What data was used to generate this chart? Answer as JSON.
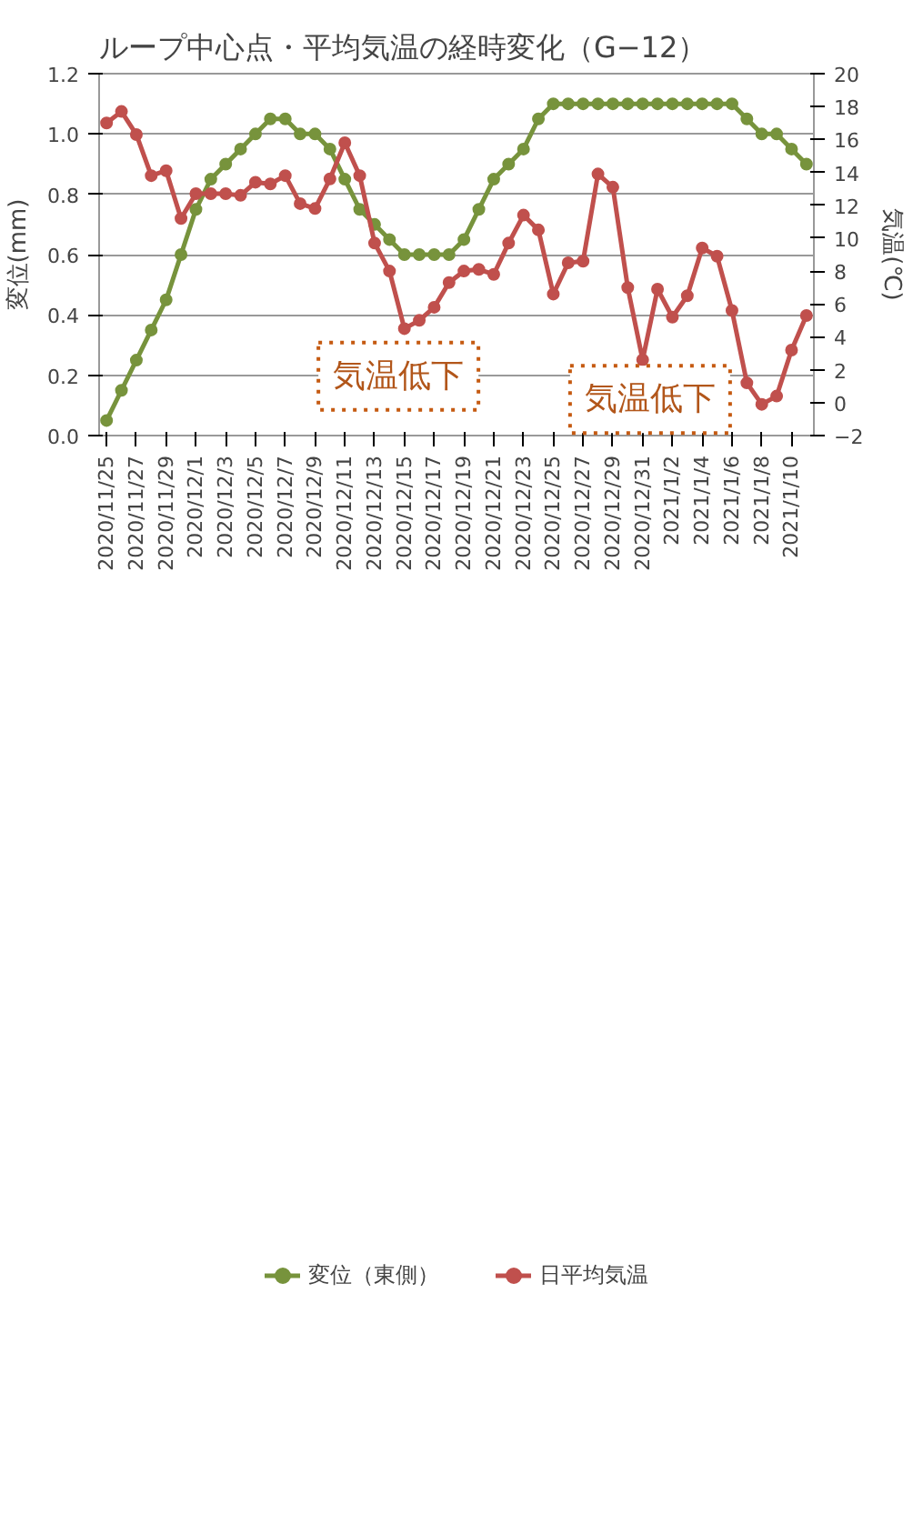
{
  "chart_data": {
    "type": "line",
    "title": "ループ中心点・平均気温の経時変化（G−12）",
    "ylabel": "変位(mm)",
    "y2label": "気温(℃)",
    "categories": [
      "2020/11/25",
      null,
      "2020/11/27",
      null,
      "2020/11/29",
      null,
      "2020/12/1",
      null,
      "2020/12/3",
      null,
      "2020/12/5",
      null,
      "2020/12/7",
      null,
      "2020/12/9",
      null,
      "2020/12/11",
      null,
      "2020/12/13",
      null,
      "2020/12/15",
      null,
      "2020/12/17",
      null,
      "2020/12/19",
      null,
      "2020/12/21",
      null,
      "2020/12/23",
      null,
      "2020/12/25",
      null,
      "2020/12/27",
      null,
      "2020/12/29",
      null,
      "2020/12/31",
      null,
      "2021/1/2",
      null,
      "2021/1/4",
      null,
      "2021/1/6",
      null,
      "2021/1/8",
      null,
      "2021/1/10",
      null
    ],
    "series": [
      {
        "name": "変位（東側）",
        "color": "#77933c",
        "values": [
          0.05,
          0.15,
          0.25,
          0.35,
          0.45,
          0.6,
          0.75,
          0.85,
          0.9,
          0.95,
          1.0,
          1.05,
          1.05,
          1.0,
          1.0,
          0.95,
          0.85,
          0.75,
          0.7,
          0.65,
          0.6,
          0.6,
          0.6,
          0.6,
          0.65,
          0.75,
          0.85,
          0.9,
          0.95,
          1.05,
          1.1,
          1.1,
          1.1,
          1.1,
          1.1,
          1.1,
          1.1,
          1.1,
          1.1,
          1.1,
          1.1,
          1.1,
          1.1,
          1.05,
          1.0,
          1.0,
          0.95,
          0.9
        ]
      },
      {
        "name": "日平均気温",
        "color": "#c0504d",
        "axis": "y2",
        "values": [
          17.0,
          17.7,
          16.3,
          13.8,
          14.1,
          11.2,
          12.7,
          12.7,
          12.7,
          12.6,
          13.4,
          13.3,
          13.8,
          12.1,
          11.8,
          13.6,
          15.8,
          13.8,
          9.7,
          8.0,
          4.5,
          5.0,
          5.8,
          7.3,
          8.0,
          8.1,
          7.8,
          9.7,
          11.4,
          10.5,
          6.6,
          8.5,
          8.6,
          13.9,
          13.1,
          7.0,
          2.6,
          6.9,
          5.2,
          6.5,
          9.4,
          8.9,
          5.6,
          1.2,
          -0.1,
          0.4,
          3.2,
          5.3
        ]
      }
    ],
    "ylim": [
      0,
      1.2
    ],
    "yticks": [
      {
        "value": 0,
        "label": "0.0"
      },
      0.2,
      0.4,
      0.6,
      0.8,
      {
        "value": 1,
        "label": "1.0"
      },
      1.2
    ],
    "y2lim": [
      -2,
      20
    ],
    "y2ticks": [
      {
        "value": -2,
        "label": "−2"
      },
      0,
      2,
      4,
      6,
      8,
      10,
      12,
      14,
      16,
      18,
      20
    ],
    "annotations": [
      "気温低下",
      "気温低下"
    ],
    "grid": "y",
    "legend": "bottom",
    "marker": "circle",
    "line_style": "solid"
  }
}
